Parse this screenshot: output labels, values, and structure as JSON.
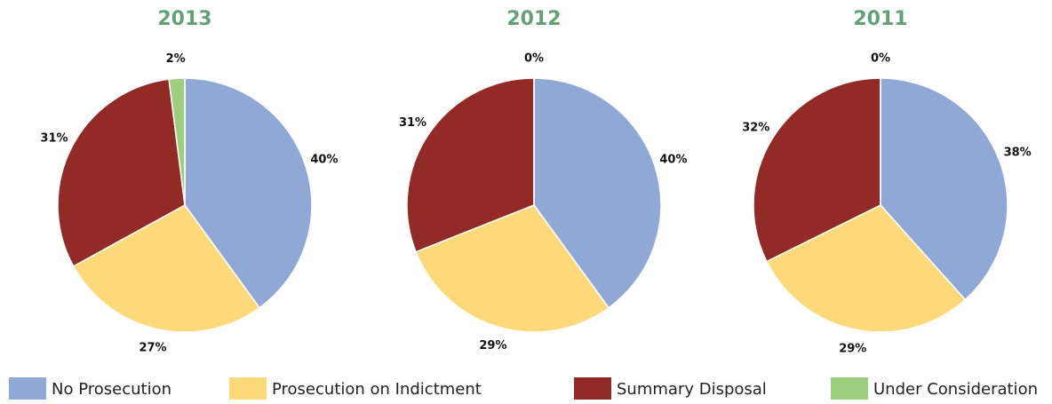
{
  "chart_data": [
    {
      "type": "pie",
      "title": "2013",
      "categories": [
        "No Prosecution",
        "Prosecution on Indictment",
        "Summary Disposal",
        "Under Consideration"
      ],
      "values": [
        40,
        27,
        31,
        2
      ],
      "value_labels": [
        "40%",
        "27%",
        "31%",
        "2%"
      ],
      "colors": [
        "#8fa8d6",
        "#fdd97a",
        "#922a26",
        "#9dcf7e"
      ]
    },
    {
      "type": "pie",
      "title": "2012",
      "categories": [
        "No Prosecution",
        "Prosecution on Indictment",
        "Summary Disposal",
        "Under Consideration"
      ],
      "values": [
        40,
        29,
        31,
        0
      ],
      "value_labels": [
        "40%",
        "29%",
        "31%",
        "0%"
      ],
      "colors": [
        "#8fa8d6",
        "#fdd97a",
        "#922a26",
        "#9dcf7e"
      ]
    },
    {
      "type": "pie",
      "title": "2011",
      "categories": [
        "No Prosecution",
        "Prosecution on Indictment",
        "Summary Disposal",
        "Under Consideration"
      ],
      "values": [
        38,
        29,
        32,
        0
      ],
      "value_labels": [
        "38%",
        "29%",
        "32%",
        "0%"
      ],
      "colors": [
        "#8fa8d6",
        "#fdd97a",
        "#922a26",
        "#9dcf7e"
      ]
    }
  ]
}
